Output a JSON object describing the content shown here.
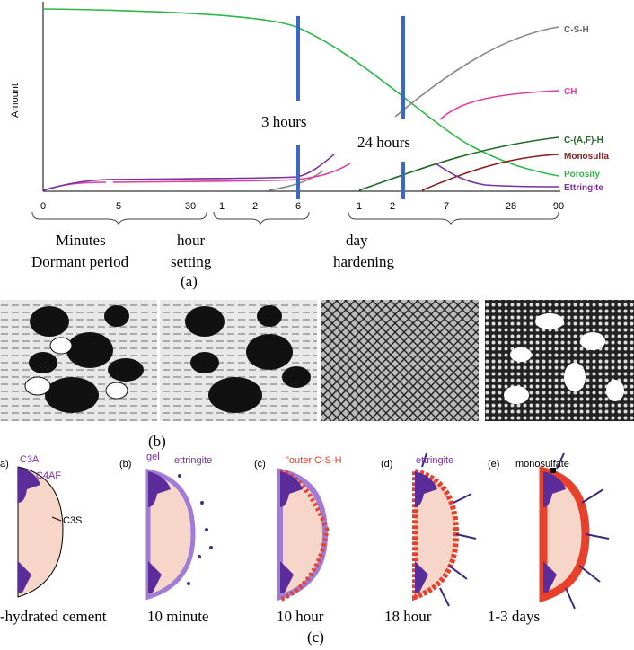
{
  "panel_a": {
    "y_axis_label": "Amount",
    "x_ticks": [
      "0",
      "5",
      "30",
      "1",
      "2",
      "6",
      "1",
      "2",
      "7",
      "28",
      "90"
    ],
    "period_labels": [
      "Minutes",
      "Dormant period",
      "hour",
      "setting",
      "day",
      "hardening"
    ],
    "annotations": [
      "3 hours",
      "24 hours"
    ],
    "curve_labels": [
      "C-S-H",
      "CH",
      "C-(A,F)-H",
      "Monosulfa",
      "Porosity",
      "Ettringite"
    ],
    "caption": "(a)"
  },
  "panel_b": {
    "caption": "(b)"
  },
  "panel_c": {
    "stage_labels": [
      "a)",
      "C3A",
      "C4AF",
      "C3S",
      "(b)",
      "gel",
      "ettringite",
      "(c)",
      "\"outer C-S-H",
      "(d)",
      "ettringite",
      "(e)",
      "monosulfate"
    ],
    "captions": [
      "-hydrated cement",
      "10 minute",
      "10 hour",
      "18 hour",
      "1-3 days"
    ],
    "caption": "(c)"
  }
}
